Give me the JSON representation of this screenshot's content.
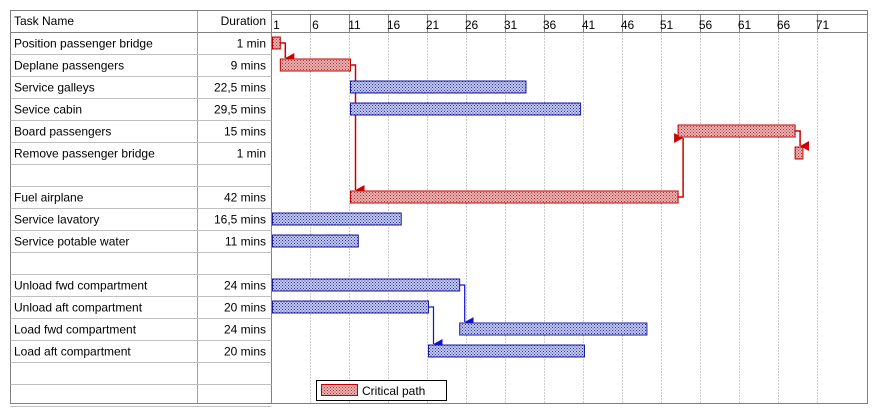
{
  "header": {
    "task_col": "Task Name",
    "duration_col": "Duration"
  },
  "timescale": {
    "labels": [
      "1",
      "6",
      "11",
      "16",
      "21",
      "26",
      "31",
      "36",
      "41",
      "46",
      "51",
      "56",
      "61",
      "66",
      "71"
    ],
    "day_min": 1,
    "day_max": 71,
    "step": 5
  },
  "tasks": [
    {
      "name": "Position passenger bridge",
      "duration": "1 min",
      "start": 1,
      "len": 1,
      "critical": true
    },
    {
      "name": "Deplane passengers",
      "duration": "9 mins",
      "start": 2,
      "len": 9,
      "critical": true
    },
    {
      "name": "Service galleys",
      "duration": "22,5 mins",
      "start": 11,
      "len": 22.5,
      "critical": false
    },
    {
      "name": "Sevice cabin",
      "duration": "29,5 mins",
      "start": 11,
      "len": 29.5,
      "critical": false
    },
    {
      "name": "Board passengers",
      "duration": "15 mins",
      "start": 53,
      "len": 15,
      "critical": true
    },
    {
      "name": "Remove passenger bridge",
      "duration": "1 min",
      "start": 68,
      "len": 1,
      "critical": true
    },
    {
      "name": "",
      "duration": "",
      "start": null,
      "len": null,
      "critical": false
    },
    {
      "name": "Fuel airplane",
      "duration": "42 mins",
      "start": 11,
      "len": 42,
      "critical": true
    },
    {
      "name": "Service lavatory",
      "duration": "16,5 mins",
      "start": 1,
      "len": 16.5,
      "critical": false
    },
    {
      "name": "Service potable water",
      "duration": "11 mins",
      "start": 1,
      "len": 11,
      "critical": false
    },
    {
      "name": "",
      "duration": "",
      "start": null,
      "len": null,
      "critical": false
    },
    {
      "name": "Unload fwd compartment",
      "duration": "24 mins",
      "start": 1,
      "len": 24,
      "critical": false
    },
    {
      "name": "Unload aft compartment",
      "duration": "20 mins",
      "start": 1,
      "len": 20,
      "critical": false
    },
    {
      "name": "Load fwd compartment",
      "duration": "24 mins",
      "start": 25,
      "len": 24,
      "critical": false
    },
    {
      "name": "Load aft compartment",
      "duration": "20 mins",
      "start": 21,
      "len": 20,
      "critical": false
    },
    {
      "name": "",
      "duration": "",
      "start": null,
      "len": null,
      "critical": false
    },
    {
      "name": "",
      "duration": "",
      "start": null,
      "len": null,
      "critical": false
    }
  ],
  "links": [
    {
      "from": 0,
      "to": 1,
      "critical": true
    },
    {
      "from": 1,
      "to": 7,
      "critical": true
    },
    {
      "from": 7,
      "to": 4,
      "critical": true
    },
    {
      "from": 4,
      "to": 5,
      "critical": true
    },
    {
      "from": 11,
      "to": 13,
      "critical": false
    },
    {
      "from": 12,
      "to": 14,
      "critical": false
    }
  ],
  "legend": {
    "label": "Critical path"
  },
  "colors": {
    "critical_fill": "#d98a8a",
    "critical_edge": "#c00000",
    "normal_fill": "#9aa8e0",
    "normal_edge": "#1a1aa0",
    "critical_link": "#d00000",
    "normal_link": "#1010d0",
    "grid": "#808080"
  }
}
